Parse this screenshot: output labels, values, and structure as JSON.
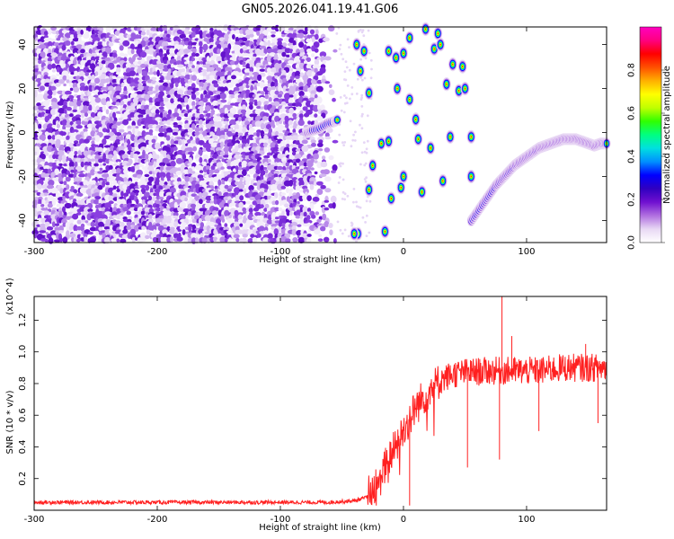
{
  "title": "GN05.2026.041.19.41.G06",
  "chart_data": [
    {
      "type": "heatmap",
      "name": "spectrogram",
      "xlabel": "Height of straight line (km)",
      "ylabel": "Frequency (Hz)",
      "xlim": [
        -300,
        165
      ],
      "ylim": [
        -50,
        48
      ],
      "xticks": [
        -300,
        -200,
        -100,
        0,
        100
      ],
      "yticks": [
        -40,
        -20,
        0,
        20,
        40
      ],
      "colorbar": {
        "label": "Normalized spectral amplitude",
        "range": [
          0,
          1
        ],
        "ticks": [
          "0.0",
          "0.2",
          "0.4",
          "0.6",
          "0.8"
        ],
        "colors": [
          "#ffffff",
          "#e8d8f4",
          "#b070e0",
          "#7010d0",
          "#3000c0",
          "#0000ff",
          "#0090ff",
          "#00e0e0",
          "#00ff80",
          "#30ff00",
          "#c0ff00",
          "#ffff00",
          "#ffb000",
          "#ff5000",
          "#ff0000",
          "#ff0080",
          "#ff00c0"
        ]
      },
      "noise_region": {
        "x_range": [
          -300,
          -55
        ],
        "y_range": [
          -50,
          48
        ]
      },
      "tone_segment": [
        [
          -78,
          0
        ],
        [
          -74,
          1
        ],
        [
          -68,
          2
        ],
        [
          -62,
          4
        ],
        [
          -56,
          5
        ],
        [
          -53,
          6
        ]
      ],
      "arc_points": [
        [
          55,
          -40
        ],
        [
          60,
          -36
        ],
        [
          65,
          -32
        ],
        [
          70,
          -28
        ],
        [
          75,
          -24
        ],
        [
          80,
          -21
        ],
        [
          85,
          -18
        ],
        [
          90,
          -15
        ],
        [
          95,
          -13
        ],
        [
          100,
          -11
        ],
        [
          105,
          -9
        ],
        [
          110,
          -7
        ],
        [
          115,
          -6
        ],
        [
          120,
          -5
        ],
        [
          125,
          -4
        ],
        [
          130,
          -3
        ],
        [
          135,
          -3
        ],
        [
          140,
          -3
        ],
        [
          145,
          -4
        ],
        [
          150,
          -5
        ],
        [
          155,
          -6
        ],
        [
          160,
          -5
        ],
        [
          165,
          -5
        ]
      ],
      "blobs": [
        [
          -38,
          40
        ],
        [
          -32,
          37
        ],
        [
          -35,
          28
        ],
        [
          -28,
          18
        ],
        [
          -25,
          -15
        ],
        [
          -28,
          -26
        ],
        [
          -12,
          -4
        ],
        [
          -10,
          -30
        ],
        [
          -12,
          37
        ],
        [
          -15,
          -45
        ],
        [
          -37,
          -46
        ],
        [
          -6,
          34
        ],
        [
          -5,
          20
        ],
        [
          -2,
          -25
        ],
        [
          0,
          -20
        ],
        [
          5,
          43
        ],
        [
          5,
          15
        ],
        [
          10,
          6
        ],
        [
          12,
          -3
        ],
        [
          15,
          -27
        ],
        [
          18,
          47
        ],
        [
          22,
          -7
        ],
        [
          25,
          38
        ],
        [
          28,
          45
        ],
        [
          30,
          40
        ],
        [
          32,
          -22
        ],
        [
          35,
          22
        ],
        [
          40,
          31
        ],
        [
          45,
          19
        ],
        [
          48,
          30
        ],
        [
          50,
          20
        ],
        [
          55,
          -2
        ],
        [
          55,
          -20
        ],
        [
          -40,
          -46
        ],
        [
          0,
          36
        ],
        [
          38,
          -2
        ],
        [
          -18,
          -5
        ]
      ]
    },
    {
      "type": "line",
      "name": "snr",
      "xlabel": "Height of straight line (km)",
      "ylabel": "SNR (10 * v/v)",
      "y_scale_label": "(x10^4)",
      "xlim": [
        -300,
        165
      ],
      "ylim": [
        0.0,
        1.35
      ],
      "xticks": [
        -300,
        -200,
        -100,
        0,
        100
      ],
      "yticks": [
        0.2,
        0.4,
        0.6,
        0.8,
        1.0,
        1.2
      ],
      "color": "#ff2020",
      "envelope": [
        [
          -300,
          0.05
        ],
        [
          -250,
          0.05
        ],
        [
          -150,
          0.05
        ],
        [
          -60,
          0.05
        ],
        [
          -40,
          0.06
        ],
        [
          -30,
          0.08
        ],
        [
          -20,
          0.2
        ],
        [
          -10,
          0.35
        ],
        [
          0,
          0.5
        ],
        [
          10,
          0.65
        ],
        [
          20,
          0.75
        ],
        [
          30,
          0.82
        ],
        [
          40,
          0.86
        ],
        [
          50,
          0.87
        ],
        [
          70,
          0.88
        ],
        [
          90,
          0.88
        ],
        [
          110,
          0.88
        ],
        [
          130,
          0.9
        ],
        [
          150,
          0.9
        ],
        [
          165,
          0.9
        ]
      ],
      "spikes": [
        [
          80,
          1.35
        ],
        [
          78,
          0.32
        ],
        [
          52,
          0.27
        ],
        [
          110,
          0.5
        ],
        [
          158,
          0.55
        ],
        [
          5,
          0.03
        ],
        [
          88,
          1.1
        ],
        [
          148,
          1.05
        ]
      ]
    }
  ]
}
